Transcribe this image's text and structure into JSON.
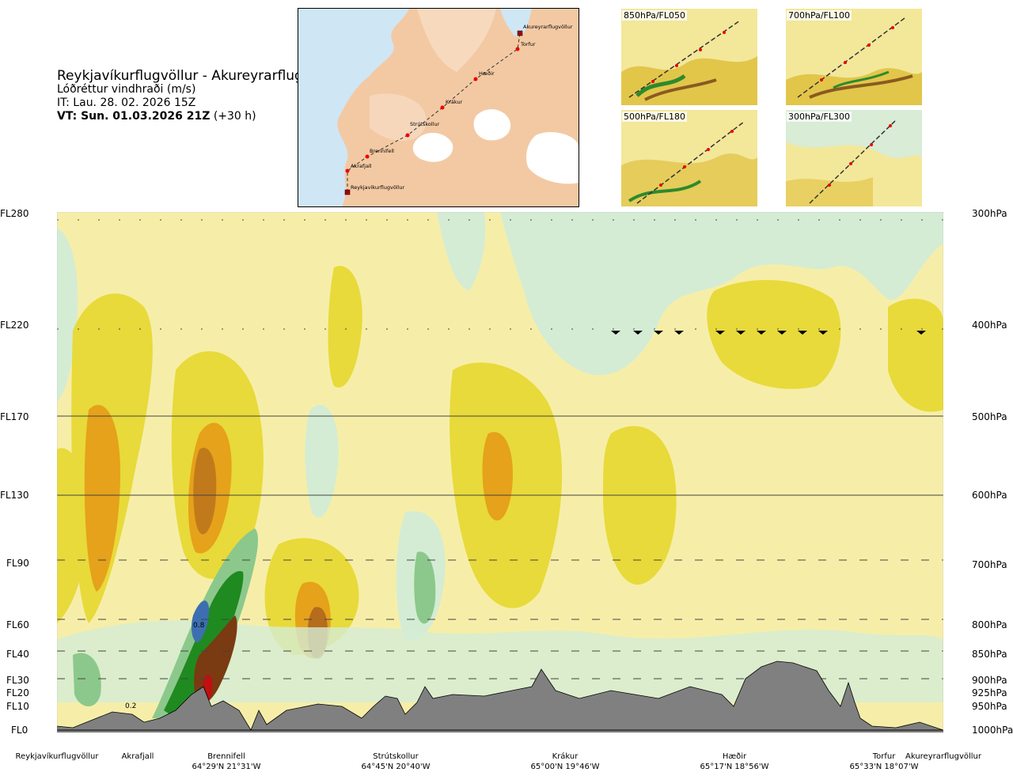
{
  "header": {
    "route_title": "Reykjavíkurflugvöllur - Akureyrarflugvöllur",
    "variable": "Lóðréttur vindhraði (m/s)",
    "issue_time": "IT: Lau. 28. 02. 2026 15Z",
    "valid_prefix": "VT: Sun. 01.03.2026 21Z",
    "valid_suffix": "(+30 h)"
  },
  "route_map": {
    "points": [
      {
        "name": "Akureyrarflugvöllur"
      },
      {
        "name": "Torfur"
      },
      {
        "name": "Hæðir"
      },
      {
        "name": "Krákur"
      },
      {
        "name": "Strútskollur"
      },
      {
        "name": "Brennifell"
      },
      {
        "name": "Akrafjall"
      },
      {
        "name": "Reykjavíkurflugvöllur"
      }
    ]
  },
  "thumbnails": [
    {
      "label": "850hPa/FL050"
    },
    {
      "label": "700hPa/FL100"
    },
    {
      "label": "500hPa/FL180"
    },
    {
      "label": "300hPa/FL300"
    }
  ],
  "flight_levels": [
    "FL280",
    "FL220",
    "FL170",
    "FL130",
    "FL90",
    "FL60",
    "FL40",
    "FL30",
    "FL20",
    "FL10",
    "FL0"
  ],
  "pressure_levels": [
    "300hPa",
    "400hPa",
    "500hPa",
    "600hPa",
    "700hPa",
    "800hPa",
    "850hPa",
    "900hPa",
    "925hPa",
    "950hPa",
    "1000hPa"
  ],
  "contour_labels": [
    "0.8",
    "0.2"
  ],
  "waypoints": [
    {
      "name": "Reykjavíkurflugvöllur",
      "coord": ""
    },
    {
      "name": "Akrafjall",
      "coord": ""
    },
    {
      "name": "Brennifell",
      "coord": "64°29'N 21°31'W"
    },
    {
      "name": "Strútskollur",
      "coord": "64°45'N 20°40'W"
    },
    {
      "name": "Krákur",
      "coord": "65°00'N 19°46'W"
    },
    {
      "name": "Hæðir",
      "coord": "65°17'N 18°56'W"
    },
    {
      "name": "Torfur",
      "coord": "65°33'N 18°07'W"
    },
    {
      "name": "Akureyrarflugvöllur",
      "coord": ""
    }
  ],
  "colors": {
    "sink_light": "#f6eea8",
    "sink_mid": "#e8da3a",
    "sink_strong": "#e5a21a",
    "sink_max": "#a45a1e",
    "lift_light": "#d4ecd4",
    "lift_mid": "#8cc88c",
    "lift_strong": "#1f8a1f",
    "lift_max": "#3d6fb0",
    "terrain": "#808080"
  }
}
